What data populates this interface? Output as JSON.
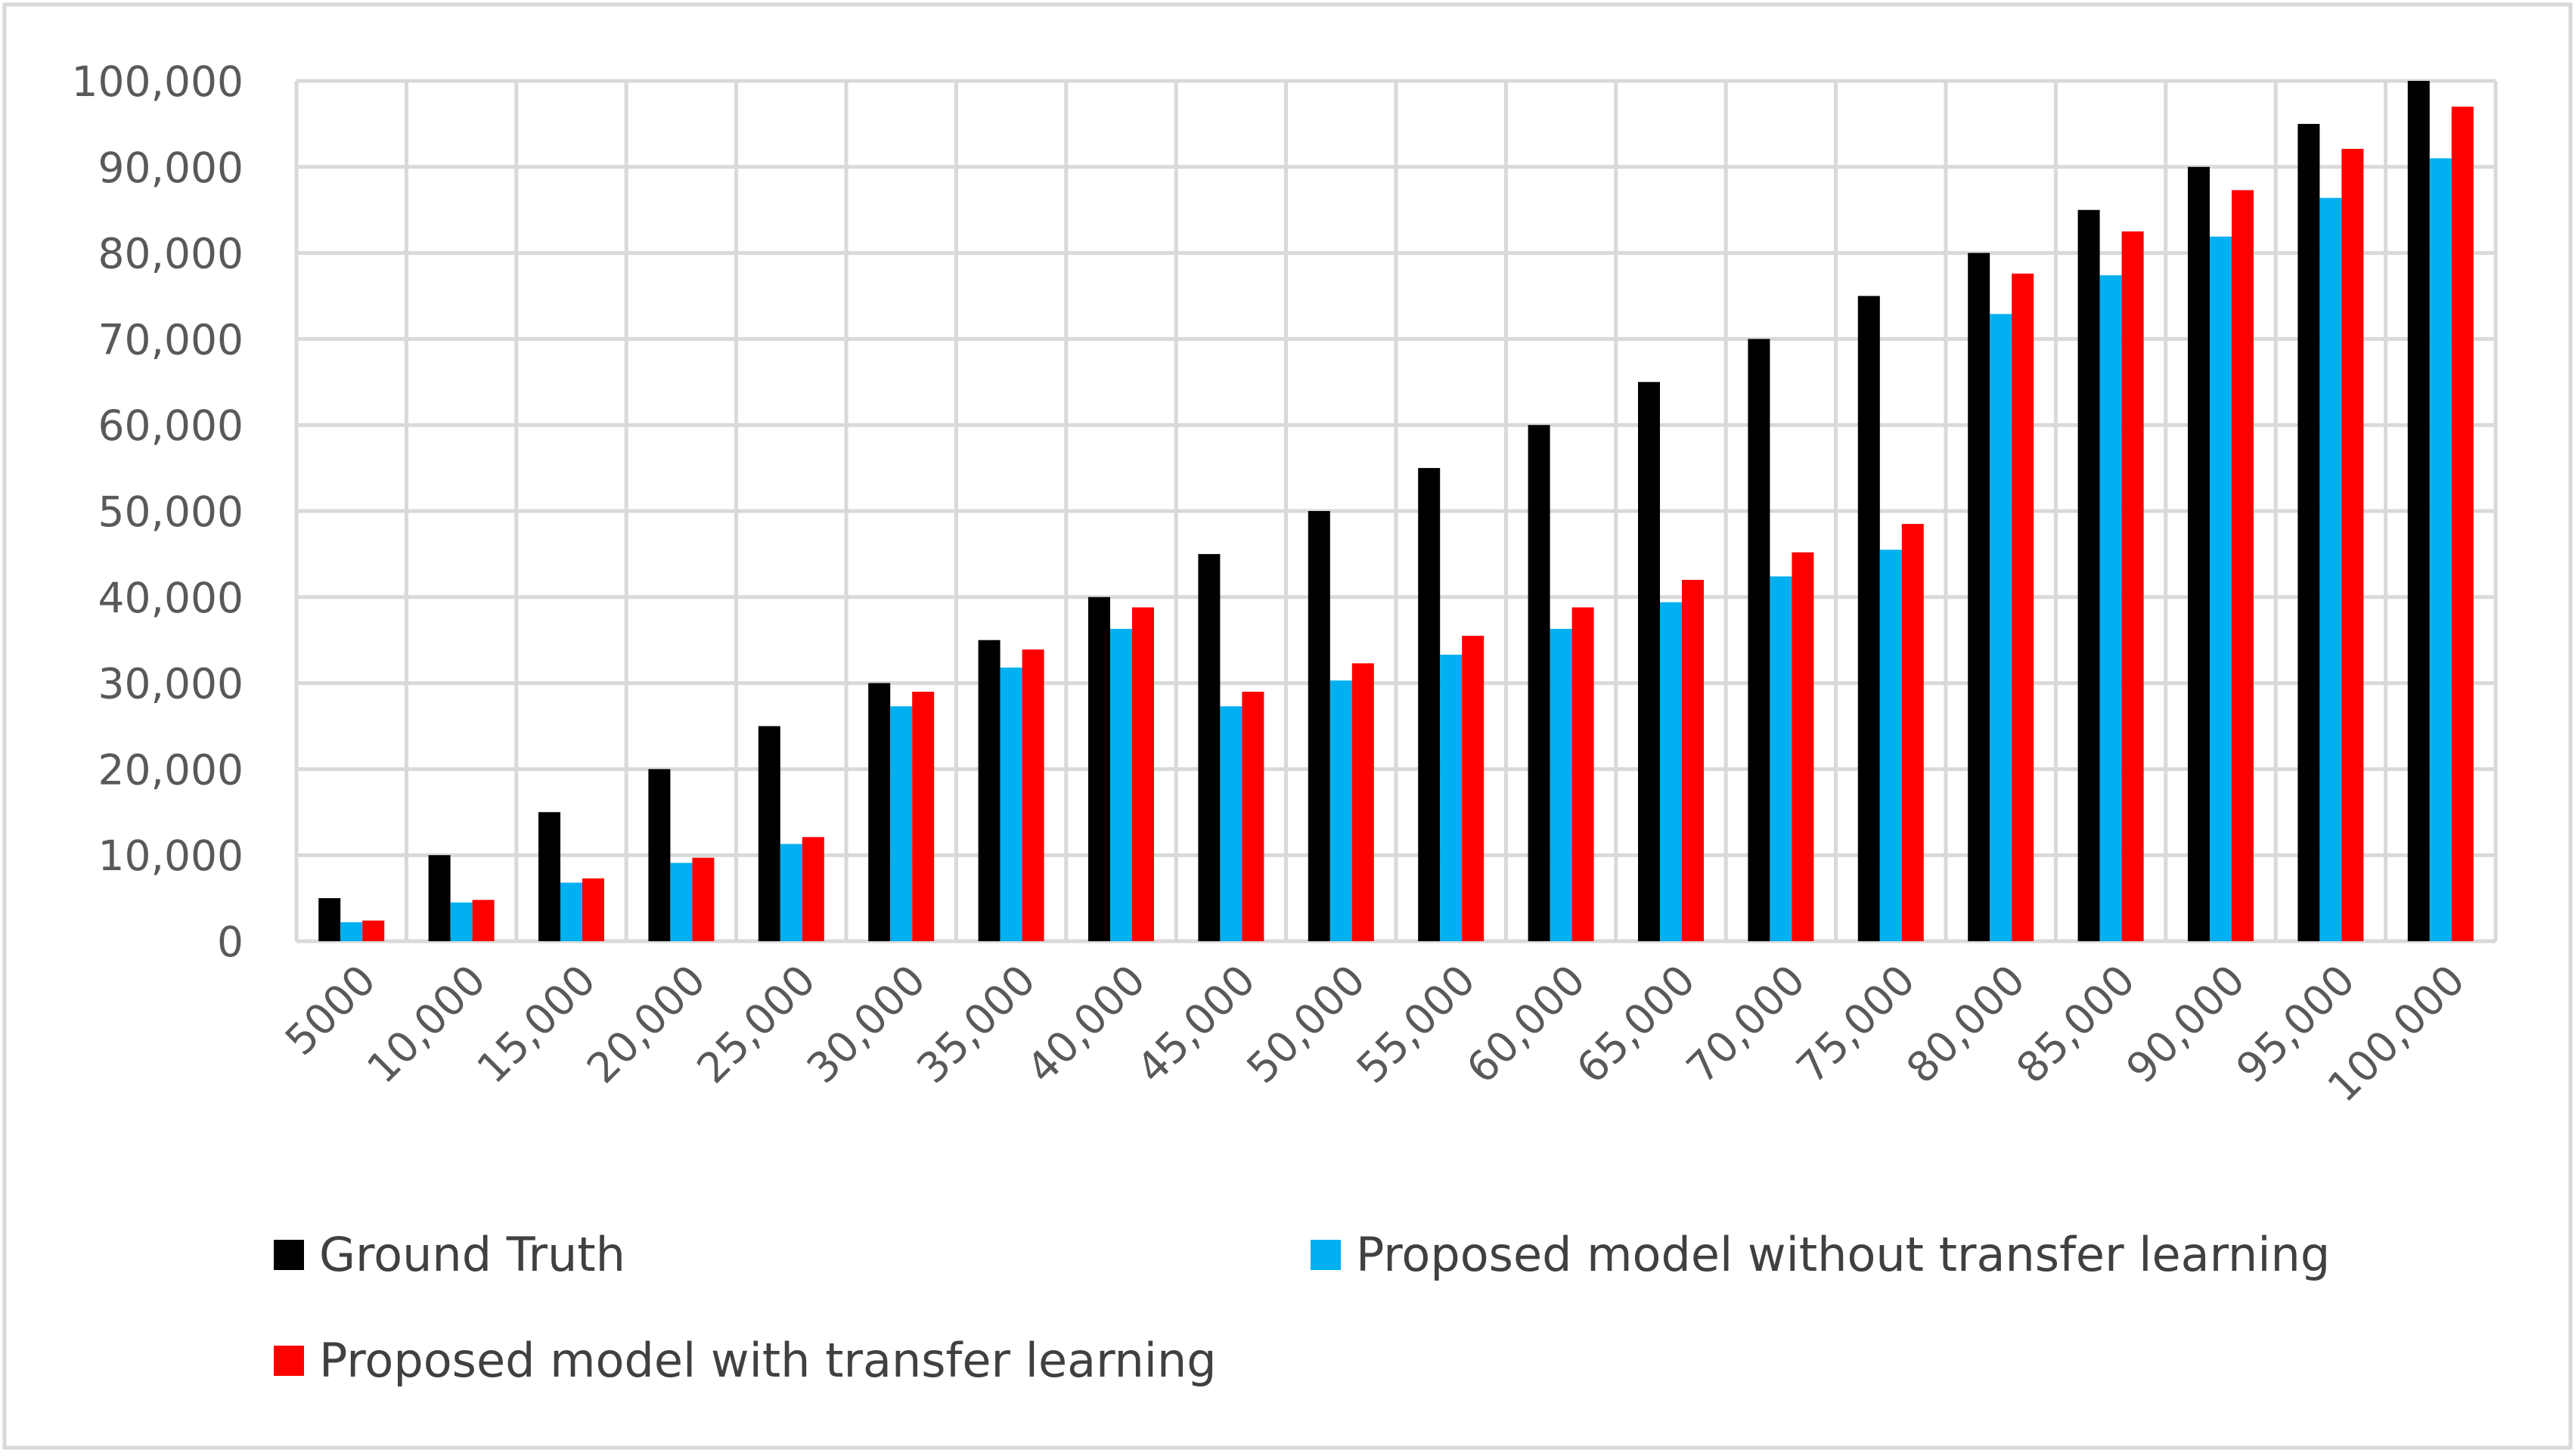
{
  "chart_data": {
    "type": "bar",
    "title": "",
    "xlabel": "",
    "ylabel": "",
    "ylim": [
      0,
      100000
    ],
    "yticks": [
      "0",
      "10,000",
      "20,000",
      "30,000",
      "40,000",
      "50,000",
      "60,000",
      "70,000",
      "80,000",
      "90,000",
      "100,000"
    ],
    "ytick_values": [
      0,
      10000,
      20000,
      30000,
      40000,
      50000,
      60000,
      70000,
      80000,
      90000,
      100000
    ],
    "grid": true,
    "legend_position": "bottom",
    "categories": [
      "5000",
      "10,000",
      "15,000",
      "20,000",
      "25,000",
      "30,000",
      "35,000",
      "40,000",
      "45,000",
      "50,000",
      "55,000",
      "60,000",
      "65,000",
      "70,000",
      "75,000",
      "80,000",
      "85,000",
      "90,000",
      "95,000",
      "100,000"
    ],
    "series": [
      {
        "name": "Ground Truth",
        "color": "#000000",
        "values": [
          5000,
          10000,
          15000,
          20000,
          25000,
          30000,
          35000,
          40000,
          45000,
          50000,
          55000,
          60000,
          65000,
          70000,
          75000,
          80000,
          85000,
          90000,
          95000,
          100000
        ]
      },
      {
        "name": "Proposed model without transfer learning",
        "color": "#00B0F0",
        "values": [
          2200,
          4500,
          6800,
          9100,
          11300,
          27300,
          31800,
          36300,
          27300,
          30300,
          33300,
          36300,
          39400,
          42400,
          45500,
          72900,
          77400,
          81900,
          86400,
          91000
        ]
      },
      {
        "name": "Proposed model with transfer learning",
        "color": "#FF0000",
        "values": [
          2400,
          4800,
          7300,
          9700,
          12100,
          29000,
          33900,
          38800,
          29000,
          32300,
          35500,
          38800,
          42000,
          45200,
          48500,
          77600,
          82500,
          87300,
          92100,
          97000
        ]
      }
    ]
  }
}
